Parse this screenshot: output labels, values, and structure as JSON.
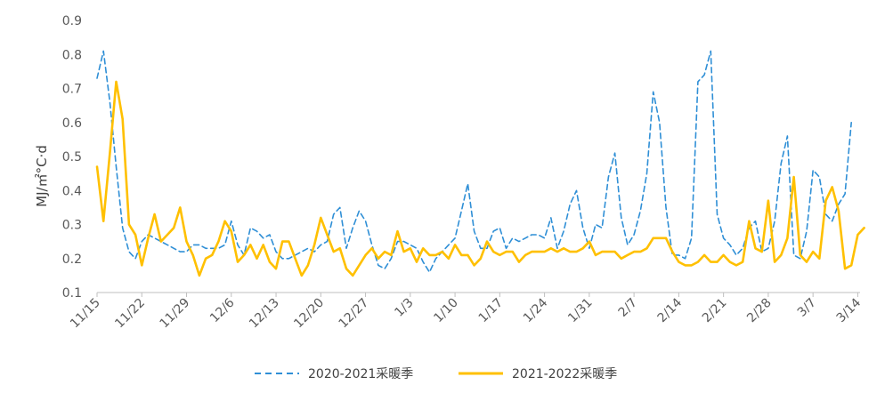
{
  "chart_data": {
    "type": "line",
    "title": "",
    "xlabel": "",
    "ylabel": "MJ/㎡°C·d",
    "ylim": [
      0.1,
      0.9
    ],
    "yticks": [
      "0.1",
      "0.2",
      "0.3",
      "0.4",
      "0.5",
      "0.6",
      "0.7",
      "0.8",
      "0.9"
    ],
    "grid": false,
    "legend_position": "bottom",
    "xtick_labels": [
      "11/15",
      "11/22",
      "11/29",
      "12/6",
      "12/13",
      "12/20",
      "12/27",
      "1/3",
      "1/10",
      "1/17",
      "1/24",
      "1/31",
      "2/7",
      "2/14",
      "2/21",
      "2/28",
      "3/7",
      "3/14"
    ],
    "series": [
      {
        "name": "2020-2021采暖季",
        "color": "#2f8fd6",
        "style": "dashed",
        "values": [
          0.73,
          0.81,
          0.66,
          0.47,
          0.29,
          0.22,
          0.2,
          0.25,
          0.27,
          0.26,
          0.25,
          0.24,
          0.23,
          0.22,
          0.22,
          0.24,
          0.24,
          0.23,
          0.23,
          0.23,
          0.24,
          0.31,
          0.24,
          0.21,
          0.29,
          0.28,
          0.26,
          0.27,
          0.22,
          0.2,
          0.2,
          0.21,
          0.22,
          0.23,
          0.22,
          0.24,
          0.25,
          0.33,
          0.35,
          0.23,
          0.29,
          0.34,
          0.31,
          0.24,
          0.18,
          0.17,
          0.2,
          0.25,
          0.25,
          0.24,
          0.23,
          0.19,
          0.16,
          0.2,
          0.22,
          0.24,
          0.26,
          0.34,
          0.42,
          0.28,
          0.23,
          0.23,
          0.28,
          0.29,
          0.23,
          0.26,
          0.25,
          0.26,
          0.27,
          0.27,
          0.26,
          0.32,
          0.23,
          0.28,
          0.36,
          0.4,
          0.29,
          0.23,
          0.3,
          0.29,
          0.44,
          0.51,
          0.32,
          0.24,
          0.27,
          0.34,
          0.45,
          0.69,
          0.6,
          0.35,
          0.21,
          0.21,
          0.2,
          0.26,
          0.72,
          0.74,
          0.81,
          0.33,
          0.26,
          0.24,
          0.21,
          0.23,
          0.29,
          0.31,
          0.22,
          0.23,
          0.31,
          0.48,
          0.56,
          0.21,
          0.2,
          0.28,
          0.46,
          0.44,
          0.33,
          0.31,
          0.36,
          0.39,
          0.6
        ]
      },
      {
        "name": "2021-2022采暖季",
        "color": "#ffc000",
        "style": "solid",
        "values": [
          0.47,
          0.31,
          0.51,
          0.72,
          0.61,
          0.3,
          0.27,
          0.18,
          0.26,
          0.33,
          0.25,
          0.27,
          0.29,
          0.35,
          0.25,
          0.21,
          0.15,
          0.2,
          0.21,
          0.25,
          0.31,
          0.28,
          0.19,
          0.21,
          0.24,
          0.2,
          0.24,
          0.19,
          0.17,
          0.25,
          0.25,
          0.2,
          0.15,
          0.18,
          0.24,
          0.32,
          0.27,
          0.22,
          0.23,
          0.17,
          0.15,
          0.18,
          0.21,
          0.23,
          0.2,
          0.22,
          0.21,
          0.28,
          0.22,
          0.23,
          0.19,
          0.23,
          0.21,
          0.21,
          0.22,
          0.2,
          0.24,
          0.21,
          0.21,
          0.18,
          0.2,
          0.25,
          0.22,
          0.21,
          0.22,
          0.22,
          0.19,
          0.21,
          0.22,
          0.22,
          0.22,
          0.23,
          0.22,
          0.23,
          0.22,
          0.22,
          0.23,
          0.25,
          0.21,
          0.22,
          0.22,
          0.22,
          0.2,
          0.21,
          0.22,
          0.22,
          0.23,
          0.26,
          0.26,
          0.26,
          0.22,
          0.19,
          0.18,
          0.18,
          0.19,
          0.21,
          0.19,
          0.19,
          0.21,
          0.19,
          0.18,
          0.19,
          0.31,
          0.23,
          0.22,
          0.37,
          0.19,
          0.21,
          0.26,
          0.44,
          0.21,
          0.19,
          0.22,
          0.2,
          0.37,
          0.41,
          0.34,
          0.17,
          0.18,
          0.27,
          0.29
        ]
      }
    ]
  }
}
